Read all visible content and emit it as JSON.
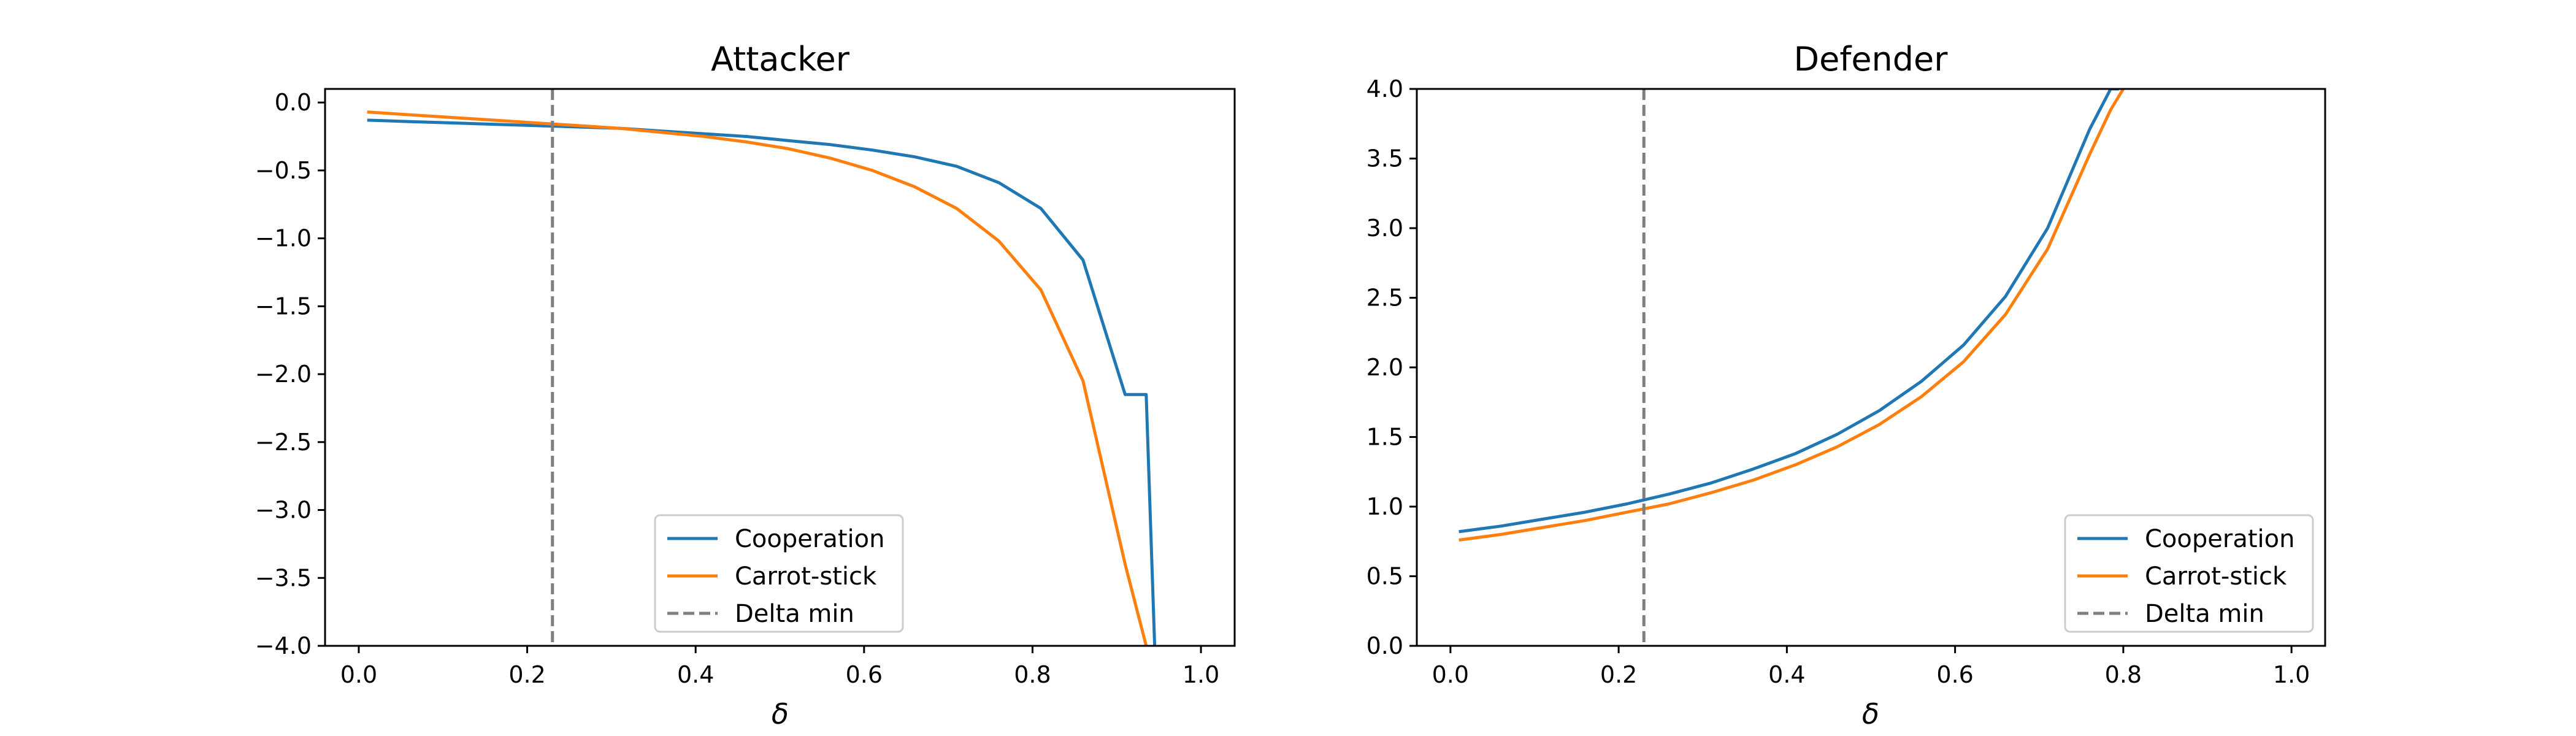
{
  "chart_data": [
    {
      "type": "line",
      "title": "Attacker",
      "xlabel": "δ",
      "ylabel": "",
      "xlim": [
        -0.04,
        1.04
      ],
      "ylim": [
        -4.0,
        0.1
      ],
      "xticks": [
        "0.0",
        "0.2",
        "0.4",
        "0.6",
        "0.8",
        "1.0"
      ],
      "yticks": [
        "0.0",
        "−0.5",
        "−1.0",
        "−1.5",
        "−2.0",
        "−2.5",
        "−3.0",
        "−3.5",
        "−4.0"
      ],
      "series": [
        {
          "name": "Cooperation",
          "color": "#1f77b4",
          "style": "solid",
          "x": [
            0.01,
            0.06,
            0.11,
            0.16,
            0.21,
            0.26,
            0.31,
            0.36,
            0.41,
            0.46,
            0.51,
            0.56,
            0.61,
            0.66,
            0.71,
            0.76,
            0.81,
            0.86,
            0.91,
            0.935,
            0.945
          ],
          "y": [
            -0.13,
            -0.14,
            -0.15,
            -0.16,
            -0.17,
            -0.18,
            -0.19,
            -0.21,
            -0.23,
            -0.25,
            -0.28,
            -0.31,
            -0.35,
            -0.4,
            -0.47,
            -0.59,
            -0.78,
            -1.16,
            -2.15,
            -2.15,
            -4.0
          ]
        },
        {
          "name": "Carrot-stick",
          "color": "#ff7f0e",
          "style": "solid",
          "x": [
            0.01,
            0.06,
            0.11,
            0.16,
            0.21,
            0.26,
            0.31,
            0.36,
            0.41,
            0.46,
            0.51,
            0.56,
            0.61,
            0.66,
            0.71,
            0.76,
            0.81,
            0.86,
            0.91,
            0.935
          ],
          "y": [
            -0.07,
            -0.09,
            -0.11,
            -0.13,
            -0.15,
            -0.17,
            -0.19,
            -0.22,
            -0.25,
            -0.29,
            -0.34,
            -0.41,
            -0.5,
            -0.62,
            -0.78,
            -1.02,
            -1.38,
            -2.05,
            -3.4,
            -4.0
          ]
        },
        {
          "name": "Delta min",
          "color": "#7f7f7f",
          "style": "dashed",
          "vline_x": 0.23
        }
      ],
      "legend": "lower-center"
    },
    {
      "type": "line",
      "title": "Defender",
      "xlabel": "δ",
      "ylabel": "",
      "xlim": [
        -0.04,
        1.04
      ],
      "ylim": [
        0.0,
        4.0
      ],
      "xticks": [
        "0.0",
        "0.2",
        "0.4",
        "0.6",
        "0.8",
        "1.0"
      ],
      "yticks": [
        "0.0",
        "0.5",
        "1.0",
        "1.5",
        "2.0",
        "2.5",
        "3.0",
        "3.5",
        "4.0"
      ],
      "series": [
        {
          "name": "Cooperation",
          "color": "#1f77b4",
          "style": "solid",
          "x": [
            0.01,
            0.06,
            0.11,
            0.16,
            0.21,
            0.26,
            0.31,
            0.36,
            0.41,
            0.46,
            0.51,
            0.56,
            0.61,
            0.66,
            0.71,
            0.76,
            0.785,
            0.795
          ],
          "y": [
            0.82,
            0.86,
            0.91,
            0.96,
            1.02,
            1.09,
            1.17,
            1.27,
            1.38,
            1.52,
            1.69,
            1.9,
            2.16,
            2.51,
            3.0,
            3.71,
            4.0,
            4.0
          ]
        },
        {
          "name": "Carrot-stick",
          "color": "#ff7f0e",
          "style": "solid",
          "x": [
            0.01,
            0.06,
            0.11,
            0.16,
            0.21,
            0.26,
            0.31,
            0.36,
            0.41,
            0.46,
            0.51,
            0.56,
            0.61,
            0.66,
            0.71,
            0.76,
            0.785,
            0.8
          ],
          "y": [
            0.76,
            0.8,
            0.85,
            0.9,
            0.96,
            1.02,
            1.1,
            1.19,
            1.3,
            1.43,
            1.59,
            1.79,
            2.04,
            2.38,
            2.85,
            3.53,
            3.85,
            4.0
          ]
        },
        {
          "name": "Delta min",
          "color": "#7f7f7f",
          "style": "dashed",
          "vline_x": 0.23
        }
      ],
      "legend": "lower-right"
    }
  ]
}
